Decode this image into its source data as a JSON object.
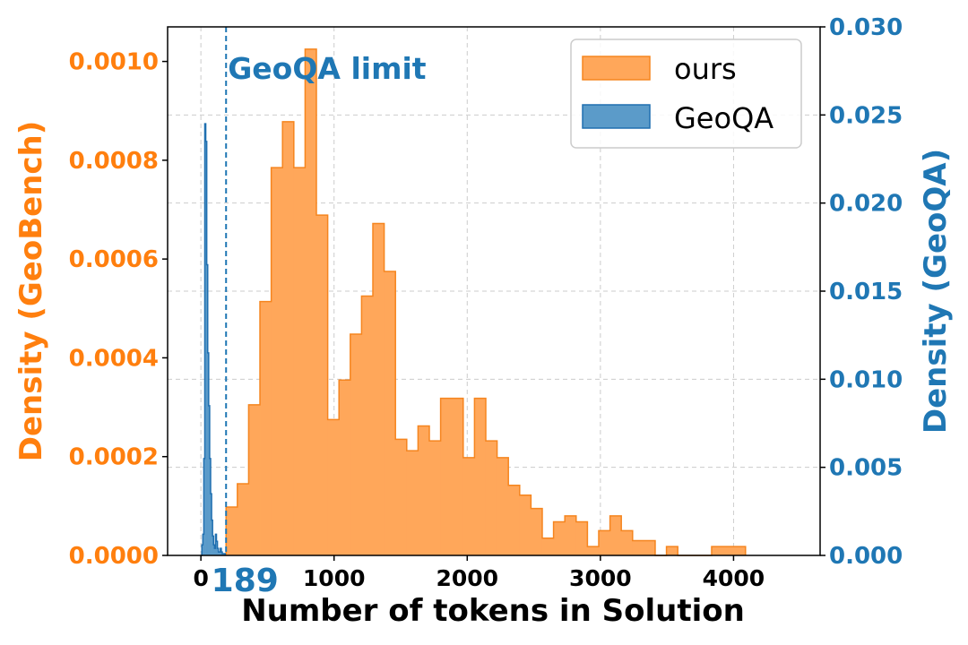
{
  "chart_data": {
    "type": "histogram",
    "xlabel": "Number of tokens in Solution",
    "ylabel_left": "Density (GeoBench)",
    "ylabel_right": "Density (GeoQA)",
    "xlim": [
      -250,
      4650
    ],
    "x_ticks": [
      0,
      1000,
      2000,
      3000,
      4000
    ],
    "ylim_left": [
      0,
      0.00107
    ],
    "ylim_right": [
      0,
      0.03
    ],
    "left_ticks": [
      "0.0000",
      "0.0002",
      "0.0004",
      "0.0006",
      "0.0008",
      "0.0010"
    ],
    "right_ticks": [
      "0.000",
      "0.005",
      "0.010",
      "0.015",
      "0.020",
      "0.025",
      "0.030"
    ],
    "grid": true,
    "legend_position": "top-right",
    "colors": {
      "ours_fill": "#FFA75A",
      "ours_edge": "#F5851F",
      "geoqa_fill": "#5B9BC9",
      "geoqa_edge": "#1F6FB0",
      "left_axis": "#FF7F0E",
      "right_axis": "#1F77B4",
      "grid": "#cccccc"
    },
    "annotations": {
      "limit_value": 189,
      "limit_text": "GeoQA limit",
      "limit_tick_label": "189"
    },
    "series": [
      {
        "name": "ours",
        "axis": "left",
        "bin_start": 189,
        "bin_width": 84.8,
        "values": [
          9.8e-05,
          0.000145,
          0.000305,
          0.000514,
          0.000785,
          0.000878,
          0.000785,
          0.001025,
          0.000689,
          0.000275,
          0.000355,
          0.000448,
          0.000525,
          0.000672,
          0.000575,
          0.000235,
          0.000212,
          0.000262,
          0.000232,
          0.000318,
          0.000318,
          0.000198,
          0.000318,
          0.000232,
          0.000198,
          0.000142,
          0.000122,
          9.5e-05,
          3.5e-05,
          6.8e-05,
          8e-05,
          6.8e-05,
          1.8e-05,
          5e-05,
          8e-05,
          5e-05,
          3e-05,
          3e-05,
          0.0,
          1.8e-05,
          0.0,
          0.0,
          0.0,
          1.8e-05,
          1.8e-05,
          1.8e-05
        ]
      },
      {
        "name": "GeoQA",
        "axis": "right",
        "bin_start": 0,
        "bin_width": 7.3,
        "values": [
          0.0,
          0.0006,
          0.0012,
          0.0055,
          0.0245,
          0.0235,
          0.0165,
          0.0115,
          0.0085,
          0.0055,
          0.0035,
          0.002,
          0.0011,
          0.0006,
          0.0004,
          0.0012,
          0.0008,
          0.0004,
          0.0002,
          0.0002,
          0.0004,
          0.0002,
          0.0001,
          0.0001,
          0.0001
        ]
      }
    ]
  }
}
